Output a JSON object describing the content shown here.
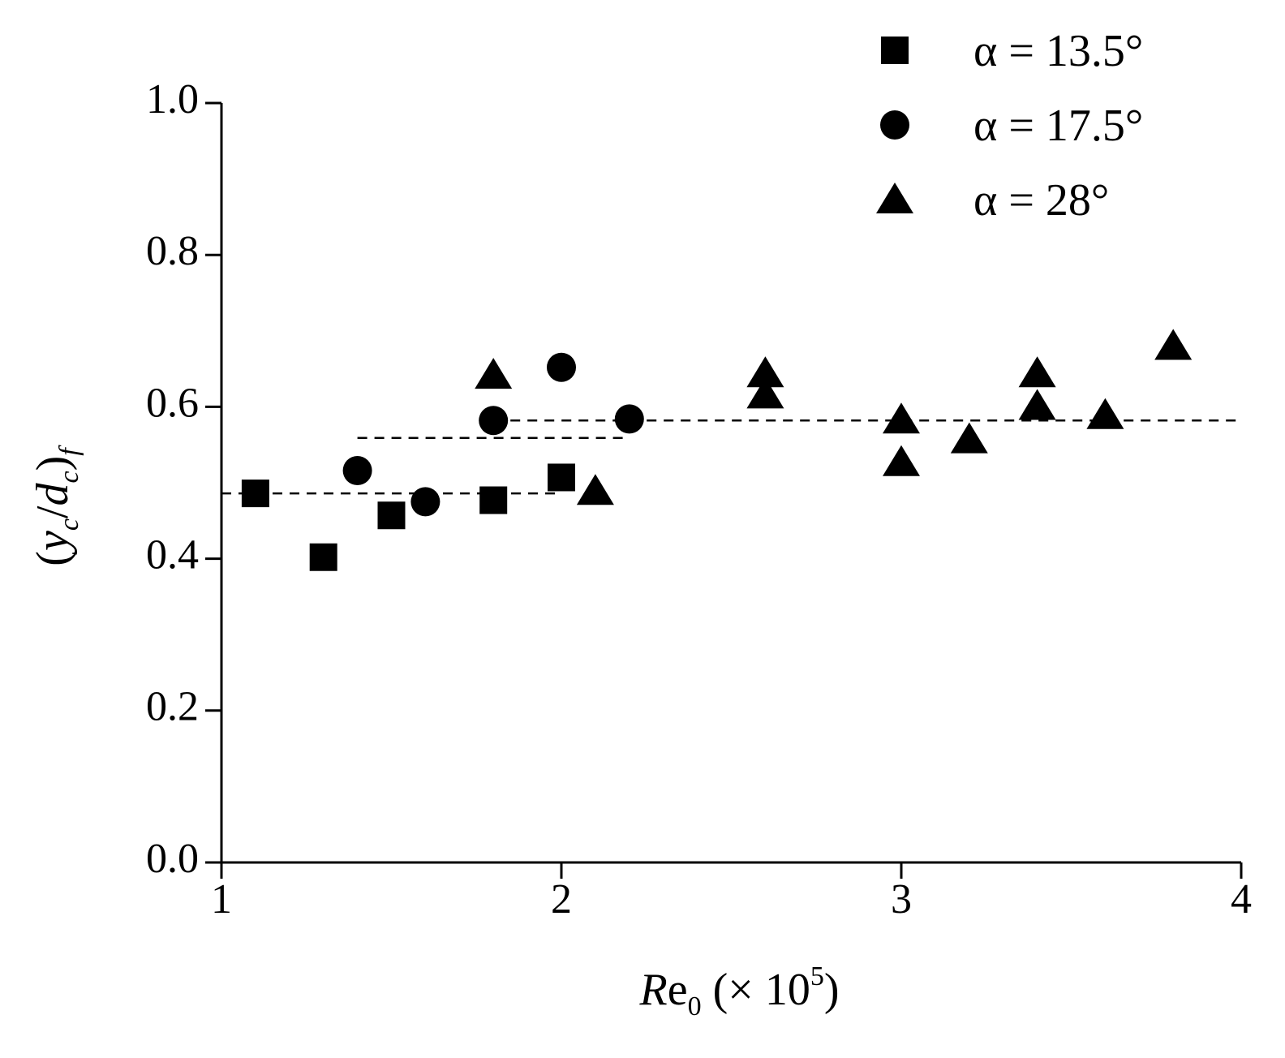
{
  "chart_data": {
    "type": "scatter",
    "xlabel": [
      {
        "text": "R",
        "italic": true
      },
      {
        "text": "e"
      },
      {
        "text": "0",
        "shift": "sub"
      },
      {
        "text": " (× 10"
      },
      {
        "text": "5",
        "shift": "super"
      },
      {
        "text": ")"
      }
    ],
    "ylabel": [
      {
        "text": "("
      },
      {
        "text": "y",
        "italic": true
      },
      {
        "text": "c",
        "italic": true,
        "shift": "sub"
      },
      {
        "text": "/"
      },
      {
        "text": "d",
        "italic": true
      },
      {
        "text": "c",
        "italic": true,
        "shift": "sub"
      },
      {
        "text": ")"
      },
      {
        "text": "f",
        "italic": true,
        "shift": "sub"
      }
    ],
    "xlim": [
      1,
      4
    ],
    "xticks": [
      1,
      2,
      3,
      4
    ],
    "ylim": [
      0,
      1
    ],
    "yticks": [
      {
        "value": 0,
        "label": "0.0"
      },
      {
        "value": 0.2,
        "label": "0.2"
      },
      {
        "value": 0.4,
        "label": "0.4"
      },
      {
        "value": 0.6,
        "label": "0.6"
      },
      {
        "value": 0.8,
        "label": "0.8"
      },
      {
        "value": 1,
        "label": "1.0"
      }
    ],
    "legend": "upper right",
    "series": [
      {
        "name": "α = 13.5°",
        "marker": "square",
        "color": "#000000",
        "x": [
          1.1,
          1.3,
          1.5,
          1.8,
          2.0
        ],
        "values": [
          0.486,
          0.402,
          0.457,
          0.477,
          0.507
        ]
      },
      {
        "name": "α = 17.5°",
        "marker": "circle",
        "color": "#000000",
        "x": [
          1.4,
          1.6,
          1.8,
          2.0,
          2.2
        ],
        "values": [
          0.516,
          0.475,
          0.582,
          0.652,
          0.584
        ]
      },
      {
        "name": "α = 28°",
        "marker": "triangle",
        "color": "#000000",
        "x": [
          1.8,
          2.1,
          2.6,
          2.6,
          3.0,
          3.0,
          3.2,
          3.4,
          3.4,
          3.6,
          3.8
        ],
        "values": [
          0.642,
          0.489,
          0.644,
          0.616,
          0.583,
          0.527,
          0.557,
          0.644,
          0.601,
          0.589,
          0.68
        ]
      }
    ],
    "reference_lines": [
      {
        "x": [
          1.0,
          2.0
        ],
        "y": 0.486
      },
      {
        "x": [
          1.4,
          2.2
        ],
        "y": 0.559
      },
      {
        "x": [
          1.8,
          4.0
        ],
        "y": 0.582
      }
    ]
  }
}
